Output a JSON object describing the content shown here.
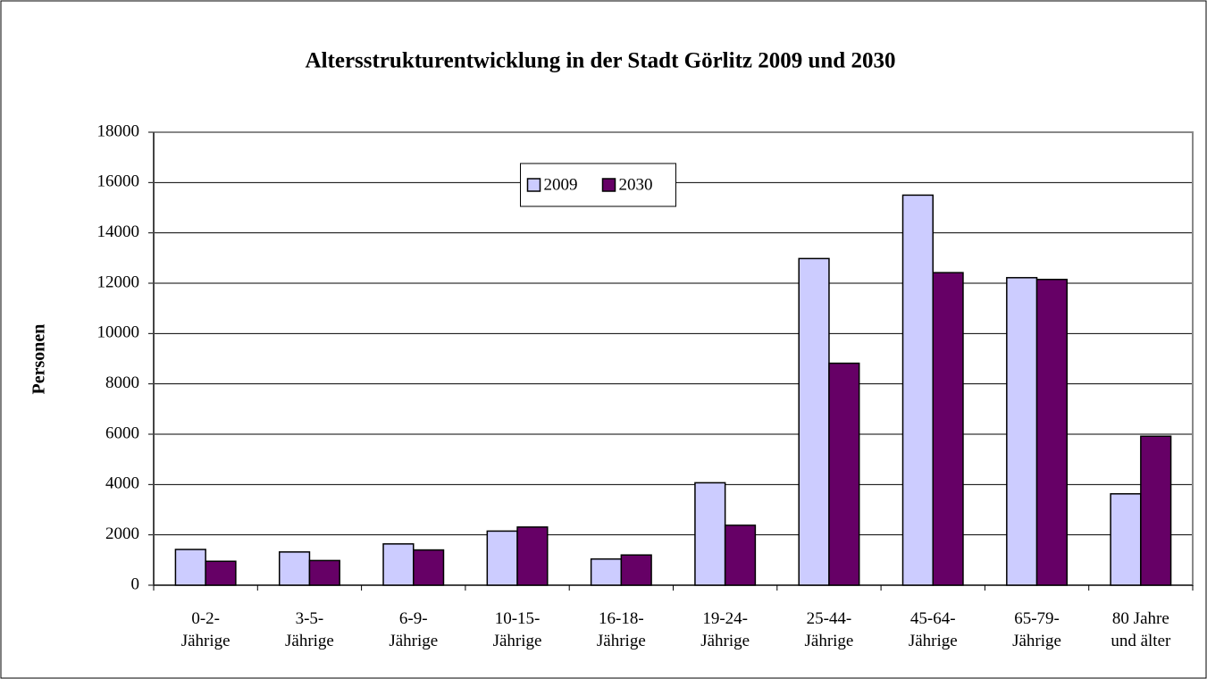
{
  "chart_data": {
    "type": "bar",
    "title": "Altersstrukturentwicklung in der Stadt Görlitz 2009 und 2030",
    "ylabel": "Personen",
    "categories": [
      "0-2-\nJährige",
      "3-5-\nJährige",
      "6-9-\nJährige",
      "10-15-\nJährige",
      "16-18-\nJährige",
      "19-24-\nJährige",
      "25-44-\nJährige",
      "45-64-\nJährige",
      "65-79-\nJährige",
      "80 Jahre\nund älter"
    ],
    "series": [
      {
        "name": "2009",
        "color": "#ccccff",
        "values": [
          1420,
          1320,
          1640,
          2150,
          1040,
          4070,
          12980,
          15500,
          12220,
          3630
        ]
      },
      {
        "name": "2030",
        "color": "#660066",
        "values": [
          950,
          980,
          1400,
          2310,
          1200,
          2380,
          8820,
          12420,
          12150,
          5920
        ]
      }
    ],
    "ylim": [
      0,
      18000
    ],
    "yticks": [
      0,
      2000,
      4000,
      6000,
      8000,
      10000,
      12000,
      14000,
      16000,
      18000
    ],
    "grid": true,
    "legend": "top-center"
  }
}
